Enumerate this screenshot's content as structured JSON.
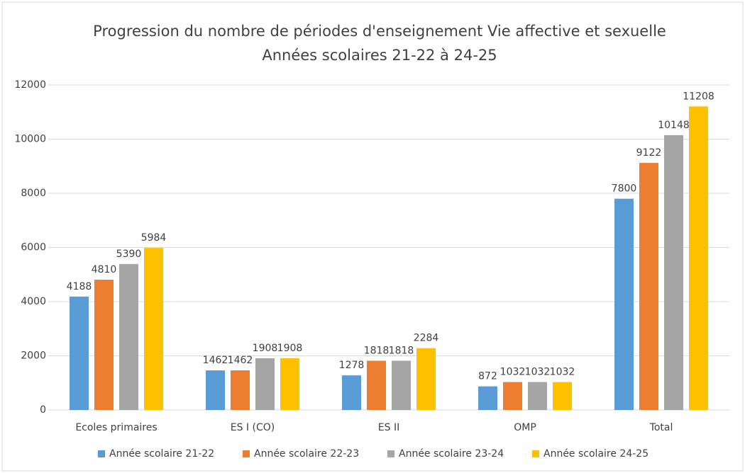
{
  "chart_data": {
    "type": "bar",
    "title": "Progression du nombre de périodes d'enseignement Vie affective et sexuelle",
    "subtitle": "Années scolaires 21-22 à 24-25",
    "categories": [
      "Ecoles primaires",
      "ES I (CO)",
      "ES II",
      "OMP",
      "Total"
    ],
    "series": [
      {
        "name": "Année scolaire 21-22",
        "color": "#5b9bd5",
        "values": [
          4188,
          1462,
          1278,
          872,
          7800
        ]
      },
      {
        "name": "Année scolaire 22-23",
        "color": "#ed7d31",
        "values": [
          4810,
          1462,
          1818,
          1032,
          9122
        ]
      },
      {
        "name": "Année scolaire 23-24",
        "color": "#a5a5a5",
        "values": [
          5390,
          1908,
          1818,
          1032,
          10148
        ]
      },
      {
        "name": "Année scolaire 24-25",
        "color": "#ffc000",
        "values": [
          5984,
          1908,
          2284,
          1032,
          11208
        ]
      }
    ],
    "ylim": [
      0,
      12000
    ],
    "yticks": [
      0,
      2000,
      4000,
      6000,
      8000,
      10000,
      12000
    ],
    "grid": true,
    "legend": "bottom"
  }
}
